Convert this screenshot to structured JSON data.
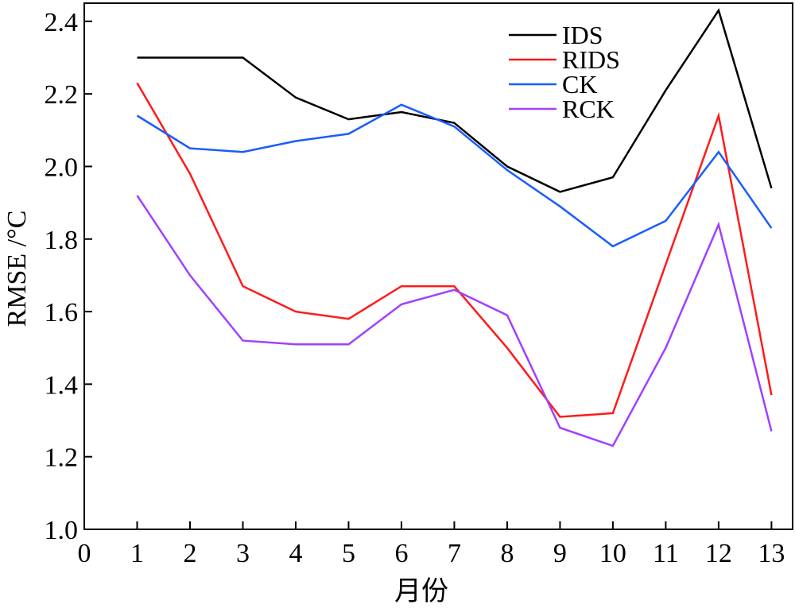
{
  "chart_data": {
    "type": "line",
    "title": "",
    "xlabel": "月份",
    "ylabel": "RMSE /°C",
    "xlim": [
      0,
      13.4
    ],
    "ylim": [
      1.0,
      2.45
    ],
    "xticks": [
      0,
      1,
      2,
      3,
      4,
      5,
      6,
      7,
      8,
      9,
      10,
      11,
      12,
      13
    ],
    "yticks": [
      1.0,
      1.2,
      1.4,
      1.6,
      1.8,
      2.0,
      2.2,
      2.4
    ],
    "ytick_labels": [
      "1.0",
      "1.2",
      "1.4",
      "1.6",
      "1.8",
      "2.0",
      "2.2",
      "2.4"
    ],
    "grid": false,
    "legend_position": "top-right",
    "x": [
      1,
      2,
      3,
      4,
      5,
      6,
      7,
      8,
      9,
      10,
      11,
      12,
      13
    ],
    "series": [
      {
        "name": "IDS",
        "color": "#000000",
        "values": [
          2.3,
          2.3,
          2.3,
          2.19,
          2.13,
          2.15,
          2.12,
          2.0,
          1.93,
          1.97,
          2.21,
          2.43,
          1.94
        ]
      },
      {
        "name": "RIDS",
        "color": "#ff1a1a",
        "values": [
          2.23,
          1.98,
          1.67,
          1.6,
          1.58,
          1.67,
          1.67,
          1.5,
          1.31,
          1.32,
          1.73,
          2.14,
          1.37
        ]
      },
      {
        "name": "CK",
        "color": "#1a5cff",
        "values": [
          2.14,
          2.05,
          2.04,
          2.07,
          2.09,
          2.17,
          2.11,
          1.99,
          1.89,
          1.78,
          1.85,
          2.04,
          1.83
        ]
      },
      {
        "name": "RCK",
        "color": "#a040ff",
        "values": [
          1.92,
          1.7,
          1.52,
          1.51,
          1.51,
          1.62,
          1.66,
          1.59,
          1.28,
          1.23,
          1.5,
          1.84,
          1.27
        ]
      }
    ]
  }
}
